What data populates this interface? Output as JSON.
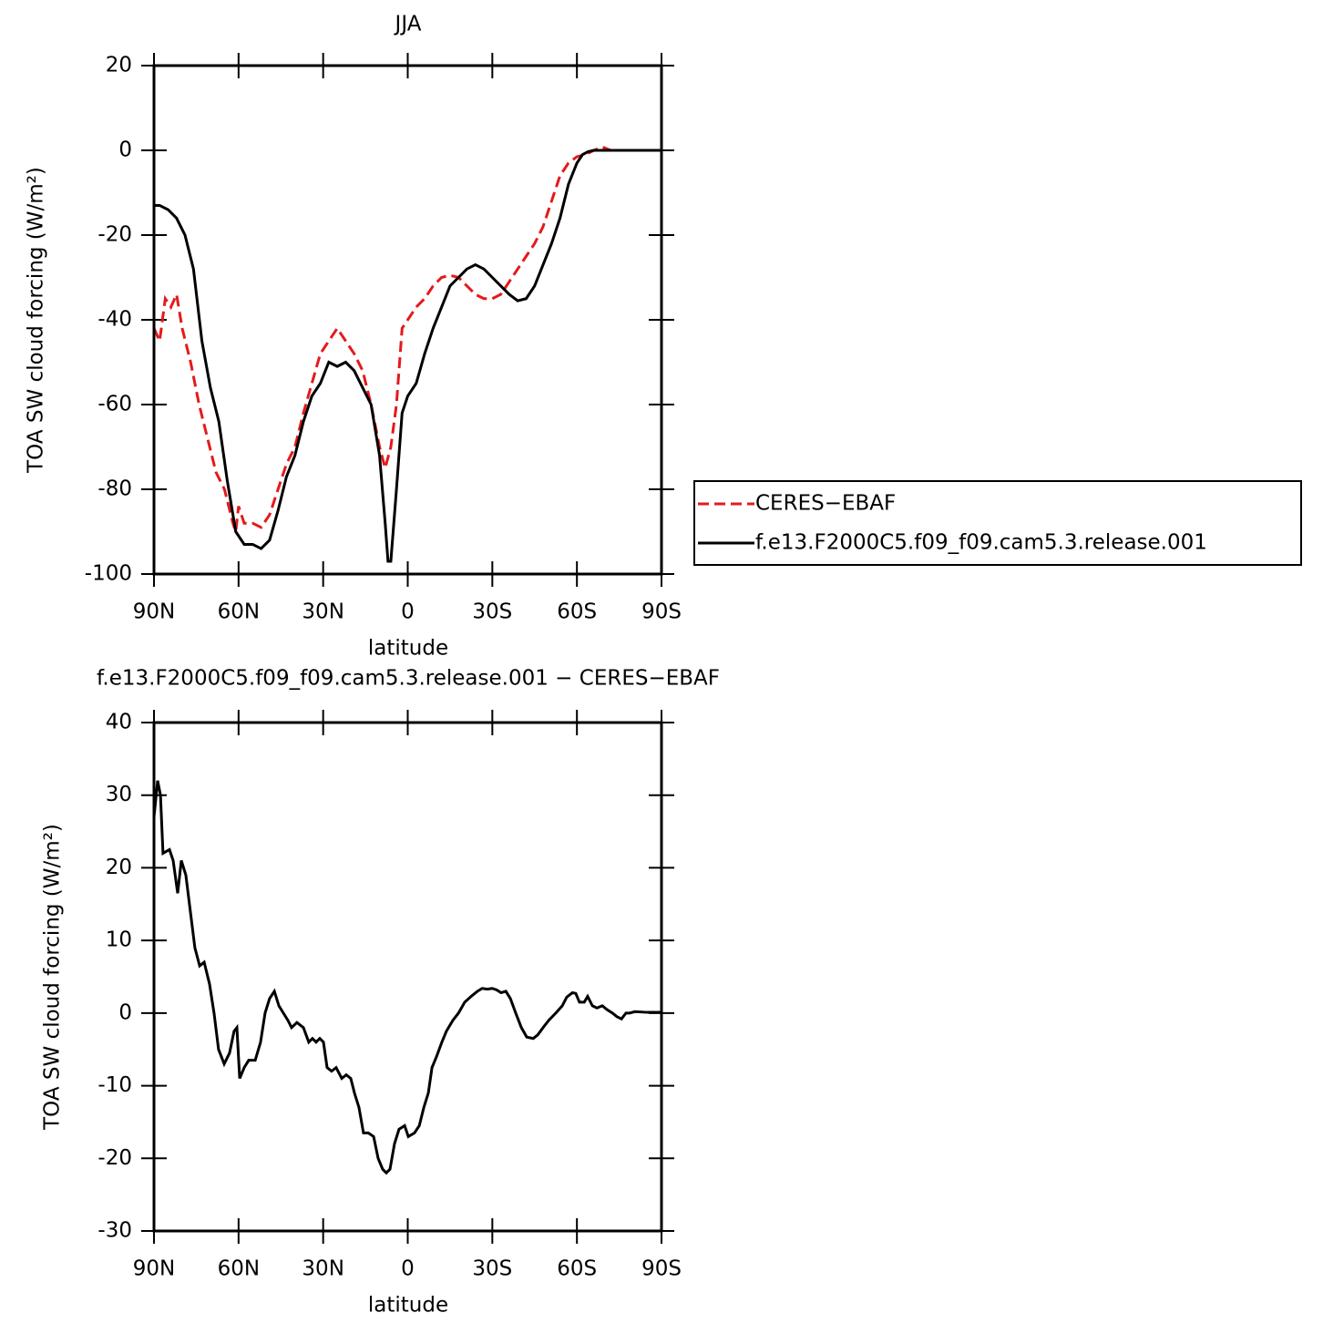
{
  "chart_data": [
    {
      "type": "line",
      "title": "JJA",
      "xlabel": "latitude",
      "ylabel": "TOA SW cloud forcing (W/m²)",
      "xlim": [
        90,
        -90
      ],
      "xticks": [
        {
          "value": 90,
          "label": "90N"
        },
        {
          "value": 60,
          "label": "60N"
        },
        {
          "value": 30,
          "label": "30N"
        },
        0,
        {
          "value": -30,
          "label": "30S"
        },
        {
          "value": -60,
          "label": "60S"
        },
        {
          "value": -90,
          "label": "90S"
        }
      ],
      "ylim": [
        -100,
        20
      ],
      "yticks": [
        20,
        0,
        -20,
        -40,
        -60,
        -80,
        -100
      ],
      "legend": "right",
      "series": [
        {
          "name": "CERES−EBAF",
          "color": "#e41a1c",
          "line_style": "dashed",
          "x": [
            90,
            88,
            86,
            84,
            82,
            80,
            77,
            74,
            71,
            68,
            65,
            62,
            61,
            60,
            58,
            55,
            52,
            49,
            46,
            43,
            40,
            37,
            34,
            31,
            28,
            25,
            22,
            19,
            16,
            13,
            10,
            8,
            6,
            4,
            2,
            0,
            -3,
            -6,
            -9,
            -12,
            -15,
            -18,
            -21,
            -24,
            -27,
            -30,
            -33,
            -36,
            -39,
            -42,
            -45,
            -48,
            -51,
            -54,
            -57,
            -60,
            -63,
            -66,
            -69,
            -72,
            -76,
            -80,
            -90
          ],
          "values": [
            -42,
            -45,
            -35,
            -37,
            -34,
            -42,
            -50,
            -60,
            -68,
            -76,
            -80,
            -88,
            -90,
            -84,
            -88,
            -88,
            -89,
            -86,
            -80,
            -74,
            -70,
            -62,
            -55,
            -48,
            -45,
            -42,
            -45,
            -48,
            -52,
            -60,
            -70,
            -75,
            -70,
            -60,
            -42,
            -40,
            -37,
            -35,
            -32,
            -30,
            -29.5,
            -30,
            -32,
            -34,
            -35,
            -35,
            -34,
            -31,
            -28,
            -25,
            -22,
            -18,
            -12,
            -6,
            -3,
            -1.5,
            -1,
            0,
            0.8,
            0,
            0,
            0,
            0
          ]
        },
        {
          "name": "f.e13.F2000C5.f09_f09.cam5.3.release.001",
          "color": "#000000",
          "line_style": "solid",
          "x": [
            90,
            88,
            85,
            82,
            79,
            76,
            73,
            70,
            67,
            64,
            61,
            58,
            55,
            52,
            49,
            46,
            43,
            40,
            37,
            34,
            31,
            28,
            25,
            22,
            19,
            16,
            13,
            10,
            8,
            7,
            6,
            4,
            2,
            0,
            -3,
            -6,
            -9,
            -12,
            -15,
            -18,
            -21,
            -24,
            -27,
            -30,
            -33,
            -36,
            -39,
            -42,
            -45,
            -48,
            -51,
            -54,
            -57,
            -60,
            -62,
            -64,
            -66,
            -70,
            -80,
            -90
          ],
          "values": [
            -13,
            -13,
            -14,
            -16,
            -20,
            -28,
            -45,
            -56,
            -64,
            -78,
            -90,
            -93,
            -93,
            -94,
            -92,
            -85,
            -77,
            -72,
            -64,
            -58,
            -55,
            -50,
            -51,
            -50,
            -52,
            -56,
            -60,
            -72,
            -88,
            -97,
            -97,
            -80,
            -62,
            -58,
            -55,
            -48,
            -42,
            -37,
            -32,
            -30,
            -28,
            -27,
            -28,
            -30,
            -32,
            -34,
            -35.5,
            -35,
            -32,
            -27,
            -22,
            -16,
            -8,
            -3,
            -1,
            -0.3,
            0,
            0,
            0,
            0
          ]
        }
      ]
    },
    {
      "type": "line",
      "title": "f.e13.F2000C5.f09_f09.cam5.3.release.001  −  CERES−EBAF",
      "xlabel": "latitude",
      "ylabel": "TOA SW cloud forcing (W/m²)",
      "xlim": [
        90,
        -90
      ],
      "xticks": [
        {
          "value": 90,
          "label": "90N"
        },
        {
          "value": 60,
          "label": "60N"
        },
        {
          "value": 30,
          "label": "30N"
        },
        0,
        {
          "value": -30,
          "label": "30S"
        },
        {
          "value": -60,
          "label": "60S"
        },
        {
          "value": -90,
          "label": "90S"
        }
      ],
      "ylim": [
        -30,
        40
      ],
      "yticks": [
        40,
        30,
        20,
        10,
        0,
        -10,
        -20,
        -30
      ],
      "series": [
        {
          "color": "#000000",
          "line_style": "solid",
          "x": [
            90,
            88.7,
            87.7,
            86.8,
            84.5,
            83.2,
            81.6,
            80.3,
            78.7,
            77.1,
            75.5,
            73.8,
            72.2,
            70.3,
            68.7,
            67.1,
            65.1,
            63.2,
            61.6,
            60.6,
            59.6,
            58.0,
            56.4,
            54.1,
            52.2,
            50.6,
            49.0,
            47.3,
            45.7,
            44.1,
            42.5,
            41.2,
            39.3,
            37.0,
            35.1,
            33.8,
            32.5,
            31.2,
            29.9,
            28.6,
            27.0,
            25.4,
            23.4,
            21.8,
            20.2,
            18.9,
            17.3,
            15.7,
            14.0,
            12.1,
            10.5,
            8.9,
            7.6,
            6.3,
            4.7,
            3.1,
            1.1,
            -0.2,
            -2.4,
            -4.1,
            -5.7,
            -7.3,
            -8.6,
            -10.2,
            -12.1,
            -13.7,
            -16,
            -18,
            -20.2,
            -22.5,
            -24.7,
            -26.4,
            -28.3,
            -29.9,
            -31.5,
            -33.1,
            -34.8,
            -36.4,
            -38.3,
            -40.3,
            -42.2,
            -44.5,
            -46.1,
            -48,
            -50,
            -52.5,
            -54.8,
            -56.4,
            -58.4,
            -59.6,
            -60.9,
            -62.6,
            -63.8,
            -65.5,
            -67.1,
            -69,
            -70.6,
            -72.6,
            -74.2,
            -75.8,
            -77.4,
            -78.7,
            -80.6,
            -84.9,
            -90
          ],
          "values": [
            27,
            32,
            30,
            22,
            22.5,
            21,
            16.5,
            21,
            19,
            14,
            9,
            6.5,
            7,
            4,
            0,
            -5,
            -7,
            -5.5,
            -2.5,
            -2,
            -9,
            -7.5,
            -6.5,
            -6.5,
            -4,
            0,
            2,
            3,
            1,
            0,
            -1,
            -2,
            -1.3,
            -2,
            -4,
            -3.5,
            -4,
            -3.5,
            -4,
            -7.5,
            -8,
            -7.5,
            -9,
            -8.5,
            -9,
            -11,
            -13,
            -16.5,
            -16.5,
            -17,
            -20,
            -21.5,
            -22,
            -21.5,
            -18,
            -16,
            -15.5,
            -17,
            -16.5,
            -15.5,
            -13,
            -11,
            -7.5,
            -6,
            -4,
            -2.5,
            -1,
            0,
            1.5,
            2.3,
            3,
            3.4,
            3.3,
            3.4,
            3.2,
            2.8,
            3,
            2,
            0,
            -2,
            -3.3,
            -3.5,
            -3,
            -2,
            -1,
            0,
            1,
            2.2,
            2.8,
            2.7,
            1.5,
            1.5,
            2.3,
            1,
            0.7,
            1,
            0.5,
            0,
            -0.5,
            -0.8,
            0,
            0,
            0.2,
            0.1,
            0.1
          ]
        }
      ]
    }
  ]
}
